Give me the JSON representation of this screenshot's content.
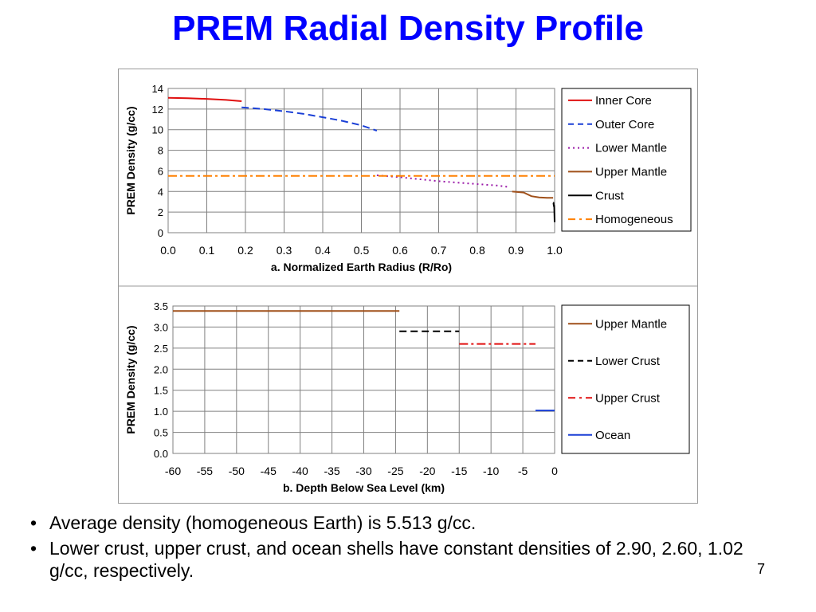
{
  "slide": {
    "title": "PREM Radial Density Profile",
    "bullets": [
      "Average density (homogeneous Earth) is 5.513 g/cc.",
      "Lower crust, upper crust, and ocean shells have constant densities of 2.90, 2.60, 1.02 g/cc, respectively."
    ],
    "bullet_glyph": "•",
    "page_number": "7"
  },
  "colors": {
    "title": "#0000ff",
    "inner_core": "#e01010",
    "outer_core": "#1a3fd6",
    "lower_mantle": "#9a1aa8",
    "upper_mantle": "#a0501a",
    "crust": "#000000",
    "homogeneous": "#ff8000",
    "lower_crust": "#000000",
    "upper_crust": "#e01010",
    "ocean": "#1a3fd6",
    "grid": "#808080"
  },
  "chart_data": [
    {
      "type": "line",
      "xlabel": "a. Normalized Earth Radius (R/Ro)",
      "ylabel": "PREM Density (g/cc)",
      "xlim": [
        0,
        1
      ],
      "ylim": [
        0,
        14
      ],
      "x_ticks": [
        "0.0",
        "0.1",
        "0.2",
        "0.3",
        "0.4",
        "0.5",
        "0.6",
        "0.7",
        "0.8",
        "0.9",
        "1.0"
      ],
      "y_ticks": [
        "0",
        "2",
        "4",
        "6",
        "8",
        "10",
        "12",
        "14"
      ],
      "grid": true,
      "legend_position": "right",
      "series": [
        {
          "name": "Inner Core",
          "dash": "solid",
          "color_key": "inner_core",
          "x": [
            0.0,
            0.05,
            0.1,
            0.15,
            0.19
          ],
          "y": [
            13.09,
            13.05,
            12.99,
            12.89,
            12.76
          ]
        },
        {
          "name": "Outer Core",
          "dash": "dash",
          "color_key": "outer_core",
          "x": [
            0.19,
            0.25,
            0.3,
            0.35,
            0.4,
            0.45,
            0.5,
            0.54
          ],
          "y": [
            12.17,
            11.99,
            11.79,
            11.53,
            11.21,
            10.86,
            10.42,
            9.9
          ]
        },
        {
          "name": "Lower Mantle",
          "dash": "dot",
          "color_key": "lower_mantle",
          "x": [
            0.54,
            0.6,
            0.65,
            0.7,
            0.75,
            0.8,
            0.85,
            0.88
          ],
          "y": [
            5.57,
            5.38,
            5.19,
            5.0,
            4.86,
            4.72,
            4.58,
            4.44
          ]
        },
        {
          "name": "Upper Mantle",
          "dash": "solid",
          "color_key": "upper_mantle",
          "x": [
            0.89,
            0.9,
            0.92,
            0.94,
            0.96,
            0.98,
            0.996
          ],
          "y": [
            3.99,
            3.97,
            3.9,
            3.54,
            3.43,
            3.38,
            3.38
          ]
        },
        {
          "name": "Crust",
          "dash": "solid",
          "color_key": "crust",
          "x": [
            0.996,
            0.997,
            0.998,
            0.999,
            1.0
          ],
          "y": [
            2.9,
            2.9,
            2.6,
            2.6,
            1.02
          ]
        },
        {
          "name": "Homogeneous",
          "dash": "dashdot",
          "color_key": "homogeneous",
          "x": [
            0.0,
            1.0
          ],
          "y": [
            5.513,
            5.513
          ]
        }
      ]
    },
    {
      "type": "line",
      "xlabel": "b. Depth Below Sea Level (km)",
      "ylabel": "PREM Density (g/cc)",
      "xlim": [
        -60,
        0
      ],
      "ylim": [
        0,
        3.5
      ],
      "x_ticks": [
        "-60",
        "-55",
        "-50",
        "-45",
        "-40",
        "-35",
        "-30",
        "-25",
        "-20",
        "-15",
        "-10",
        "-5",
        "0"
      ],
      "y_ticks": [
        "0.0",
        "0.5",
        "1.0",
        "1.5",
        "2.0",
        "2.5",
        "3.0",
        "3.5"
      ],
      "grid": true,
      "legend_position": "right",
      "series": [
        {
          "name": "Upper Mantle",
          "dash": "solid",
          "color_key": "upper_mantle",
          "x": [
            -60,
            -24.4
          ],
          "y": [
            3.38,
            3.38
          ]
        },
        {
          "name": "Lower Crust",
          "dash": "dash",
          "color_key": "lower_crust",
          "x": [
            -24.4,
            -15
          ],
          "y": [
            2.9,
            2.9
          ]
        },
        {
          "name": "Upper Crust",
          "dash": "dashdot",
          "color_key": "upper_crust",
          "x": [
            -15,
            -3
          ],
          "y": [
            2.6,
            2.6
          ]
        },
        {
          "name": "Ocean",
          "dash": "solid",
          "color_key": "ocean",
          "x": [
            -3,
            0
          ],
          "y": [
            1.02,
            1.02
          ]
        }
      ]
    }
  ]
}
